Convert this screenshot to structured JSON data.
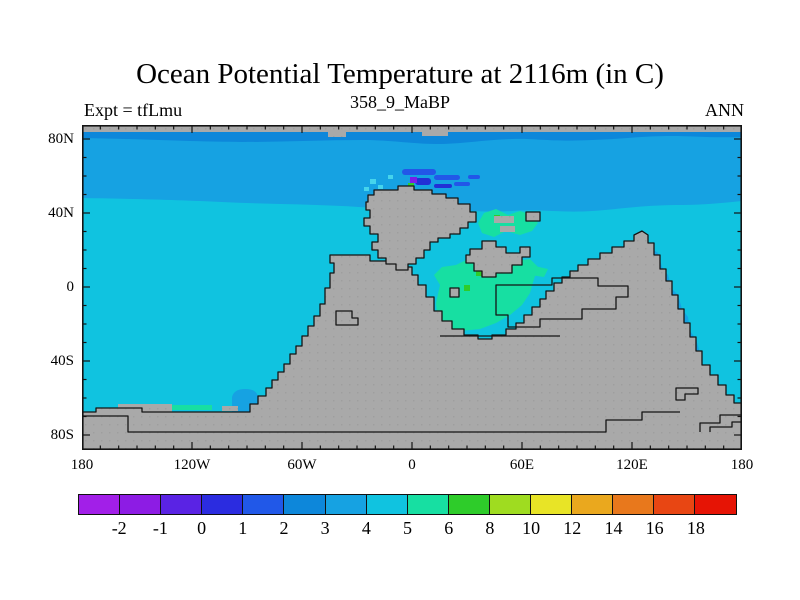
{
  "title": "Ocean Potential Temperature at 2116m (in C)",
  "subtitle": "358_9_MaBP",
  "experiment_label": "Expt = tfLmu",
  "season_label": "ANN",
  "axes": {
    "x_tick_labels": [
      "180",
      "120W",
      "60W",
      "0",
      "60E",
      "120E",
      "180"
    ],
    "y_tick_labels": [
      "80N",
      "40N",
      "0",
      "40S",
      "80S"
    ]
  },
  "colorbar": {
    "labels": [
      "-2",
      "-1",
      "0",
      "1",
      "2",
      "3",
      "4",
      "5",
      "6",
      "8",
      "10",
      "12",
      "14",
      "16",
      "18"
    ],
    "colors": [
      "#a21fe8",
      "#8d1ce4",
      "#5a23e4",
      "#2b2ce0",
      "#2158e8",
      "#0d87da",
      "#16a2e2",
      "#10c3e0",
      "#17dfa2",
      "#2ecc2a",
      "#9fdc20",
      "#e8e426",
      "#eaa81e",
      "#e8781c",
      "#e84613",
      "#e61405"
    ]
  },
  "map_colors": {
    "land": "#a9a9a9",
    "land_dot": "#9e9e9e",
    "outline": "#141414",
    "ocean_4_5": "#10c3e0",
    "band_3_4": "#16a2e2",
    "band_2_3": "#0d87da",
    "green_5_6": "#17dfa2",
    "green_6_8": "#2ecc2a",
    "navy_0_1": "#2230d6",
    "blue_1_2": "#2257e8",
    "purple_m1_0": "#7a1ee8",
    "pale_cyan": "#45d4ec"
  },
  "chart_data": {
    "type": "heatmap",
    "variant": "filled-contour-world-map",
    "title": "Ocean Potential Temperature at 2116m (in C)",
    "subtitle": "358_9_MaBP",
    "annotation_left": "Expt = tfLmu",
    "annotation_right": "ANN",
    "units": "degrees C",
    "x_axis": {
      "ticks": [
        "180",
        "120W",
        "60W",
        "0",
        "60E",
        "120E",
        "180"
      ],
      "range_deg": [
        -180,
        180
      ],
      "minor_tick_interval_deg": 10
    },
    "y_axis": {
      "ticks": [
        "80N",
        "40N",
        "0",
        "40S",
        "80S"
      ],
      "range_deg": [
        -88,
        88
      ],
      "minor_tick_interval_deg": 10
    },
    "levels": [
      -2,
      -1,
      0,
      1,
      2,
      3,
      4,
      5,
      6,
      8,
      10,
      12,
      14,
      16,
      18
    ],
    "legend_position": "bottom",
    "grid": false,
    "regions": [
      {
        "area": "high northern latitude band (~60N-87N)",
        "value_range_C": "2 to 3"
      },
      {
        "area": "northern mid-latitude band (~40N-60N)",
        "value_range_C": "3 to 4"
      },
      {
        "area": "most of the global ocean",
        "value_range_C": "4 to 5"
      },
      {
        "area": "equatorial seaway east of central landmass (~10E-45E, 10N-25N)",
        "value_range_C": "5 to 6 with spots of 6 to 8"
      },
      {
        "area": "shelf patches near 25E-55E, 35N-45N",
        "value_range_C": "5 to 6"
      },
      {
        "area": "small anomaly near 0E, 57N",
        "value_range_C": "-1 to 2 (navy/purple spots)"
      },
      {
        "area": "eastern boundary band near 115E-125E, 5S-35S",
        "value_range_C": "3 to 4"
      },
      {
        "area": "small blob near 95W-100W, 68S",
        "value_range_C": "3 to 4"
      },
      {
        "area": "southern supercontinent, central landmass, north polar strip",
        "value_range_C": "land (gray)"
      }
    ]
  }
}
